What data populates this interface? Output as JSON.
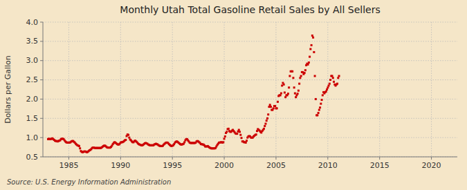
{
  "chart_data": {
    "type": "scatter",
    "title": "Monthly Utah Total Gasoline Retail Sales by All Sellers",
    "y_label": "Dollars per Gallon",
    "source": "Source: U.S. Energy Information Administration",
    "color": "#cc0000",
    "marker": "square",
    "grid": true,
    "xlim": [
      1982.5,
      2022.5
    ],
    "ylim": [
      0.5,
      4.0
    ],
    "xticks": [
      1985,
      1990,
      1995,
      2000,
      2005,
      2010,
      2015,
      2020
    ],
    "yticks": [
      0.5,
      {
        "value": 1.0,
        "label": "1.0"
      },
      1.5,
      {
        "value": 2.0,
        "label": "2.0"
      },
      2.5,
      {
        "value": 3.0,
        "label": "3.0"
      },
      3.5,
      {
        "value": 4.0,
        "label": "4.0"
      }
    ],
    "x": [
      1983.0,
      1983.083,
      1983.167,
      1983.25,
      1983.333,
      1983.417,
      1983.5,
      1983.583,
      1983.667,
      1983.75,
      1983.833,
      1983.917,
      1984.0,
      1984.083,
      1984.167,
      1984.25,
      1984.333,
      1984.417,
      1984.5,
      1984.583,
      1984.667,
      1984.75,
      1984.833,
      1984.917,
      1985.0,
      1985.083,
      1985.167,
      1985.25,
      1985.333,
      1985.417,
      1985.5,
      1985.583,
      1985.667,
      1985.75,
      1985.833,
      1985.917,
      1986.0,
      1986.083,
      1986.167,
      1986.25,
      1986.333,
      1986.417,
      1986.5,
      1986.583,
      1986.667,
      1986.75,
      1986.833,
      1986.917,
      1987.0,
      1987.083,
      1987.167,
      1987.25,
      1987.333,
      1987.417,
      1987.5,
      1987.583,
      1987.667,
      1987.75,
      1987.833,
      1987.917,
      1988.0,
      1988.083,
      1988.167,
      1988.25,
      1988.333,
      1988.417,
      1988.5,
      1988.583,
      1988.667,
      1988.75,
      1988.833,
      1988.917,
      1989.0,
      1989.083,
      1989.167,
      1989.25,
      1989.333,
      1989.417,
      1989.5,
      1989.583,
      1989.667,
      1989.75,
      1989.833,
      1989.917,
      1990.0,
      1990.083,
      1990.167,
      1990.25,
      1990.333,
      1990.417,
      1990.5,
      1990.583,
      1990.667,
      1990.75,
      1990.833,
      1990.917,
      1991.0,
      1991.083,
      1991.167,
      1991.25,
      1991.333,
      1991.417,
      1991.5,
      1991.583,
      1991.667,
      1991.75,
      1991.833,
      1991.917,
      1992.0,
      1992.083,
      1992.167,
      1992.25,
      1992.333,
      1992.417,
      1992.5,
      1992.583,
      1992.667,
      1992.75,
      1992.833,
      1992.917,
      1993.0,
      1993.083,
      1993.167,
      1993.25,
      1993.333,
      1993.417,
      1993.5,
      1993.583,
      1993.667,
      1993.75,
      1993.833,
      1993.917,
      1994.0,
      1994.083,
      1994.167,
      1994.25,
      1994.333,
      1994.417,
      1994.5,
      1994.583,
      1994.667,
      1994.75,
      1994.833,
      1994.917,
      1995.0,
      1995.083,
      1995.167,
      1995.25,
      1995.333,
      1995.417,
      1995.5,
      1995.583,
      1995.667,
      1995.75,
      1995.833,
      1995.917,
      1996.0,
      1996.083,
      1996.167,
      1996.25,
      1996.333,
      1996.417,
      1996.5,
      1996.583,
      1996.667,
      1996.75,
      1996.833,
      1996.917,
      1997.0,
      1997.083,
      1997.167,
      1997.25,
      1997.333,
      1997.417,
      1997.5,
      1997.583,
      1997.667,
      1997.75,
      1997.833,
      1997.917,
      1998.0,
      1998.083,
      1998.167,
      1998.25,
      1998.333,
      1998.417,
      1998.5,
      1998.583,
      1998.667,
      1998.75,
      1998.833,
      1998.917,
      1999.0,
      1999.083,
      1999.167,
      1999.25,
      1999.333,
      1999.417,
      1999.5,
      1999.583,
      1999.667,
      1999.75,
      1999.833,
      1999.917,
      2000.0,
      2000.083,
      2000.167,
      2000.25,
      2000.333,
      2000.417,
      2000.5,
      2000.583,
      2000.667,
      2000.75,
      2000.833,
      2000.917,
      2001.0,
      2001.083,
      2001.167,
      2001.25,
      2001.333,
      2001.417,
      2001.5,
      2001.583,
      2001.667,
      2001.75,
      2001.833,
      2001.917,
      2002.0,
      2002.083,
      2002.167,
      2002.25,
      2002.333,
      2002.417,
      2002.5,
      2002.583,
      2002.667,
      2002.75,
      2002.833,
      2002.917,
      2003.0,
      2003.083,
      2003.167,
      2003.25,
      2003.333,
      2003.417,
      2003.5,
      2003.583,
      2003.667,
      2003.75,
      2003.833,
      2003.917,
      2004.0,
      2004.083,
      2004.167,
      2004.25,
      2004.333,
      2004.417,
      2004.5,
      2004.583,
      2004.667,
      2004.75,
      2004.833,
      2004.917,
      2005.0,
      2005.083,
      2005.167,
      2005.25,
      2005.333,
      2005.417,
      2005.5,
      2005.583,
      2005.667,
      2005.75,
      2005.833,
      2005.917,
      2006.0,
      2006.083,
      2006.167,
      2006.25,
      2006.333,
      2006.417,
      2006.5,
      2006.583,
      2006.667,
      2006.75,
      2006.833,
      2006.917,
      2007.0,
      2007.083,
      2007.167,
      2007.25,
      2007.333,
      2007.417,
      2007.5,
      2007.583,
      2007.667,
      2007.75,
      2007.833,
      2007.917,
      2008.0,
      2008.083,
      2008.167,
      2008.25,
      2008.333,
      2008.417,
      2008.5,
      2008.583,
      2008.667,
      2008.75,
      2008.833,
      2008.917,
      2009.0,
      2009.083,
      2009.167,
      2009.25,
      2009.333,
      2009.417,
      2009.5,
      2009.583,
      2009.667,
      2009.75,
      2009.833,
      2009.917,
      2010.0,
      2010.083,
      2010.167,
      2010.25,
      2010.333,
      2010.417,
      2010.5,
      2010.583,
      2010.667,
      2010.75,
      2010.833,
      2010.917,
      2011.0,
      2011.083
    ],
    "values": [
      0.96,
      0.97,
      0.96,
      0.96,
      0.97,
      0.98,
      0.96,
      0.94,
      0.92,
      0.91,
      0.91,
      0.9,
      0.91,
      0.92,
      0.93,
      0.96,
      0.97,
      0.97,
      0.96,
      0.93,
      0.9,
      0.88,
      0.87,
      0.87,
      0.87,
      0.87,
      0.88,
      0.9,
      0.91,
      0.91,
      0.89,
      0.87,
      0.84,
      0.82,
      0.8,
      0.79,
      0.78,
      0.72,
      0.65,
      0.63,
      0.62,
      0.63,
      0.64,
      0.64,
      0.63,
      0.62,
      0.63,
      0.65,
      0.67,
      0.68,
      0.7,
      0.73,
      0.74,
      0.74,
      0.73,
      0.73,
      0.73,
      0.73,
      0.73,
      0.73,
      0.73,
      0.73,
      0.74,
      0.76,
      0.78,
      0.79,
      0.79,
      0.77,
      0.75,
      0.74,
      0.74,
      0.74,
      0.74,
      0.76,
      0.79,
      0.83,
      0.86,
      0.88,
      0.87,
      0.85,
      0.83,
      0.82,
      0.82,
      0.84,
      0.87,
      0.88,
      0.88,
      0.89,
      0.91,
      0.93,
      0.94,
      1.04,
      1.08,
      1.07,
      1.0,
      0.95,
      0.93,
      0.9,
      0.88,
      0.88,
      0.91,
      0.92,
      0.9,
      0.88,
      0.85,
      0.83,
      0.82,
      0.81,
      0.8,
      0.8,
      0.81,
      0.83,
      0.85,
      0.86,
      0.85,
      0.84,
      0.82,
      0.81,
      0.8,
      0.8,
      0.8,
      0.8,
      0.8,
      0.82,
      0.83,
      0.84,
      0.83,
      0.82,
      0.8,
      0.79,
      0.78,
      0.78,
      0.78,
      0.79,
      0.82,
      0.84,
      0.86,
      0.87,
      0.87,
      0.86,
      0.83,
      0.81,
      0.79,
      0.78,
      0.79,
      0.8,
      0.83,
      0.87,
      0.89,
      0.9,
      0.89,
      0.87,
      0.85,
      0.83,
      0.82,
      0.82,
      0.83,
      0.84,
      0.88,
      0.93,
      0.96,
      0.96,
      0.93,
      0.9,
      0.87,
      0.86,
      0.86,
      0.86,
      0.86,
      0.86,
      0.86,
      0.87,
      0.9,
      0.91,
      0.9,
      0.88,
      0.86,
      0.83,
      0.83,
      0.82,
      0.82,
      0.8,
      0.77,
      0.77,
      0.77,
      0.78,
      0.76,
      0.74,
      0.73,
      0.72,
      0.72,
      0.72,
      0.72,
      0.72,
      0.73,
      0.77,
      0.81,
      0.84,
      0.87,
      0.87,
      0.88,
      0.88,
      0.87,
      0.88,
      0.97,
      1.03,
      1.12,
      1.15,
      1.22,
      1.23,
      1.17,
      1.15,
      1.15,
      1.18,
      1.2,
      1.17,
      1.14,
      1.11,
      1.1,
      1.1,
      1.16,
      1.2,
      1.15,
      1.07,
      0.99,
      0.9,
      0.9,
      0.88,
      0.88,
      0.87,
      0.92,
      1.0,
      1.03,
      1.04,
      1.03,
      1.0,
      1.0,
      1.0,
      1.03,
      1.05,
      1.07,
      1.08,
      1.17,
      1.22,
      1.2,
      1.18,
      1.15,
      1.13,
      1.17,
      1.2,
      1.23,
      1.3,
      1.36,
      1.44,
      1.5,
      1.6,
      1.8,
      1.85,
      1.8,
      1.72,
      1.72,
      1.76,
      1.82,
      1.82,
      1.76,
      1.76,
      1.93,
      2.08,
      2.1,
      2.1,
      2.15,
      2.35,
      2.42,
      2.38,
      2.17,
      2.05,
      2.1,
      2.1,
      2.14,
      2.3,
      2.6,
      2.72,
      2.72,
      2.72,
      2.55,
      2.3,
      2.15,
      2.05,
      2.1,
      2.14,
      2.22,
      2.4,
      2.55,
      2.6,
      2.7,
      2.7,
      2.65,
      2.68,
      2.75,
      2.88,
      2.92,
      2.9,
      2.95,
      3.1,
      3.3,
      3.4,
      3.65,
      3.6,
      3.22,
      2.6,
      2.0,
      1.58,
      1.58,
      1.64,
      1.72,
      1.78,
      1.88,
      1.98,
      2.1,
      2.18,
      2.15,
      2.18,
      2.2,
      2.25,
      2.3,
      2.35,
      2.4,
      2.5,
      2.6,
      2.6,
      2.55,
      2.45,
      2.38,
      2.35,
      2.38,
      2.4,
      2.55,
      2.6
    ]
  }
}
